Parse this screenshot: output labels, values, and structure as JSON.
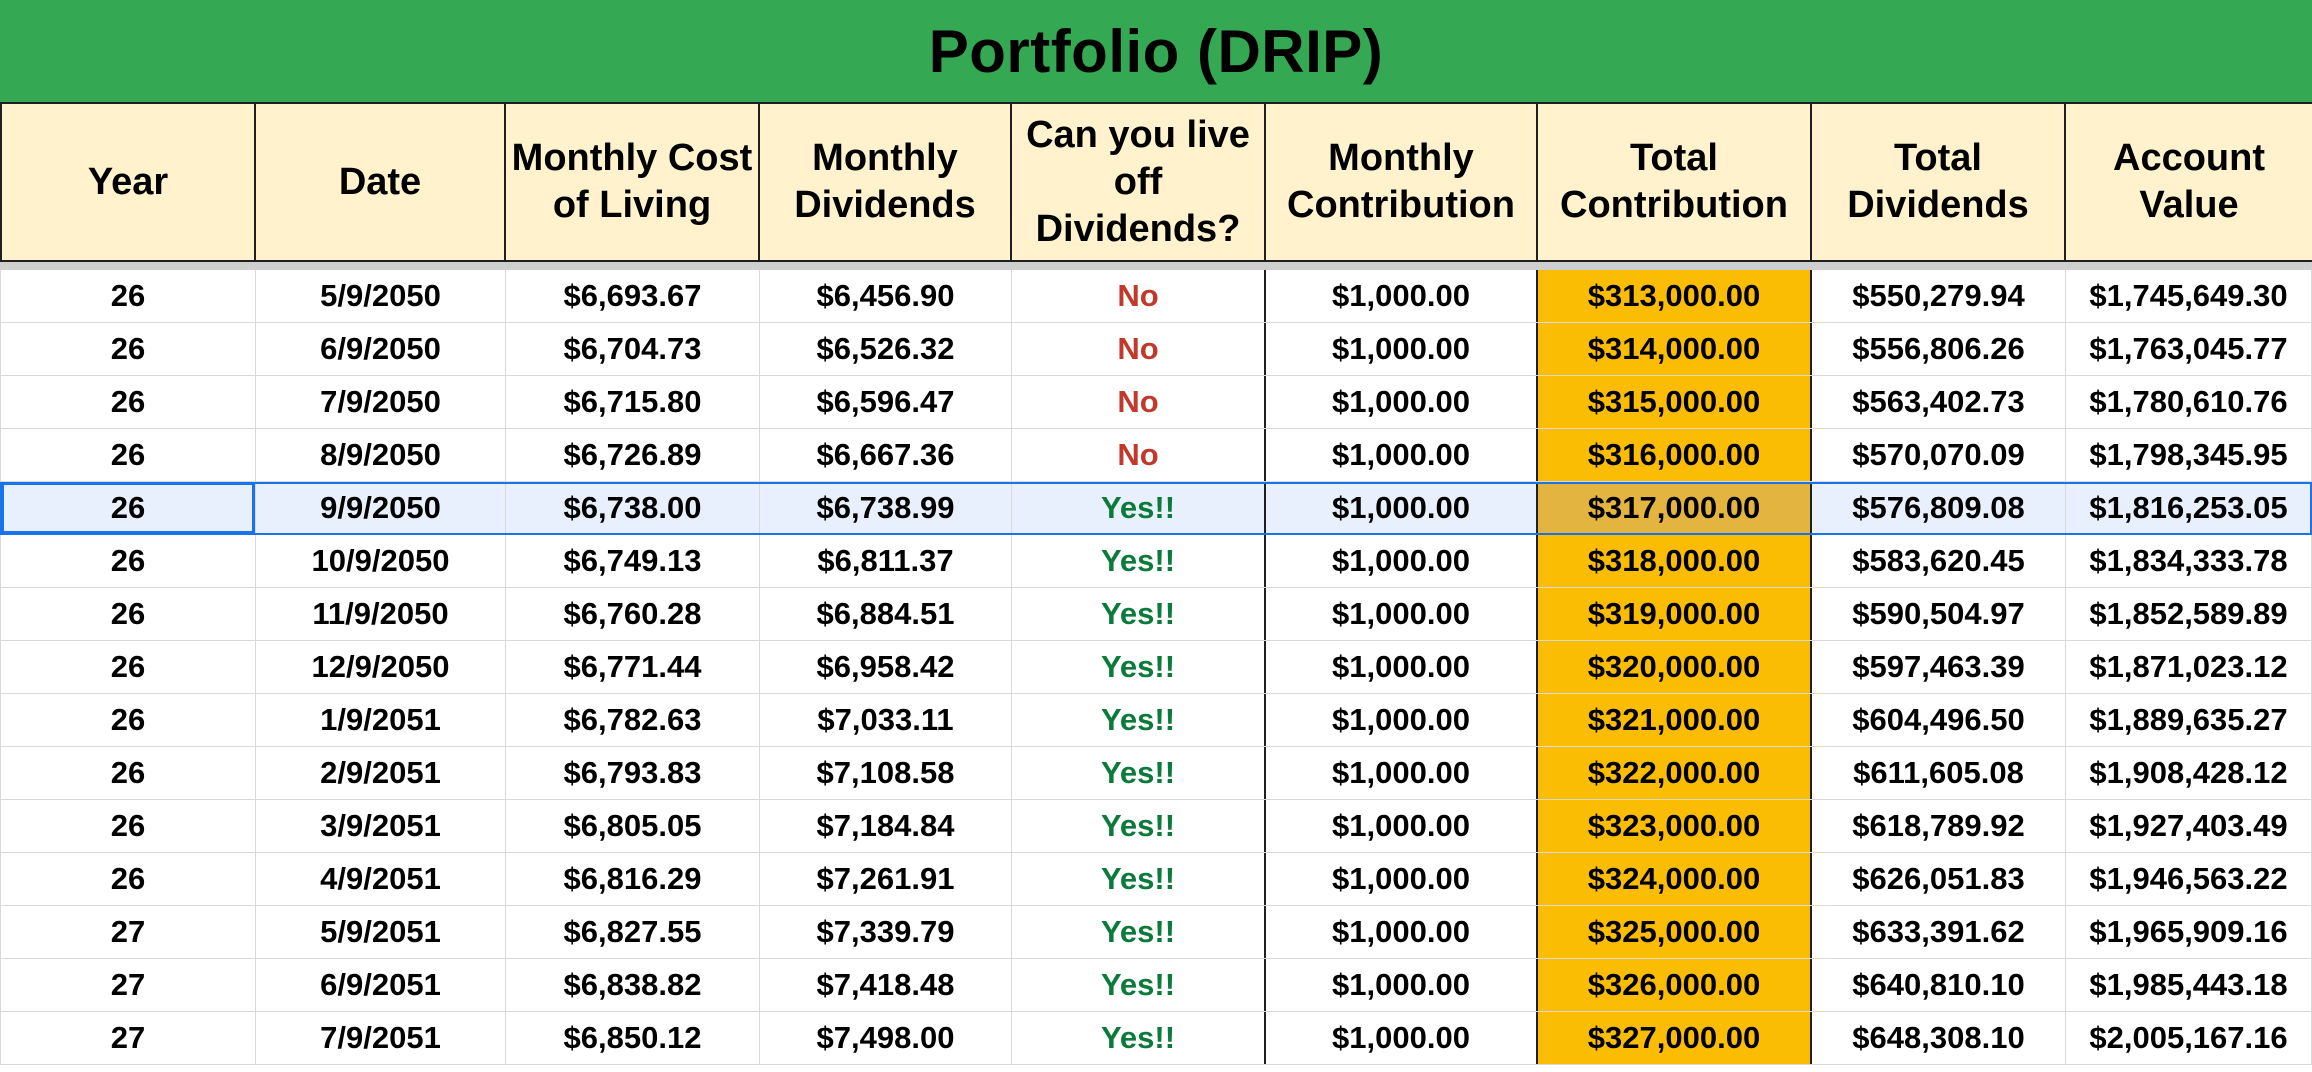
{
  "sheet": {
    "title": "Portfolio (DRIP)",
    "colors": {
      "title_bg": "#34a853",
      "header_bg": "#fff2cc",
      "total_contribution_bg": "#fbbc04",
      "no_text": "#c0392b",
      "yes_text": "#0b7a3a",
      "selection": "#1a73e8"
    },
    "headers": [
      "Year",
      "Date",
      "Monthly Cost of Living",
      "Monthly Dividends",
      "Can you live off Dividends?",
      "Monthly Contribution",
      "Total Contribution",
      "Total Dividends",
      "Account Value"
    ],
    "rows": [
      {
        "year": "26",
        "date": "5/9/2050",
        "cost": "$6,693.67",
        "dividends": "$6,456.90",
        "live": "No",
        "contribution": "$1,000.00",
        "total_contribution": "$313,000.00",
        "total_dividends": "$550,279.94",
        "account_value": "$1,745,649.30"
      },
      {
        "year": "26",
        "date": "6/9/2050",
        "cost": "$6,704.73",
        "dividends": "$6,526.32",
        "live": "No",
        "contribution": "$1,000.00",
        "total_contribution": "$314,000.00",
        "total_dividends": "$556,806.26",
        "account_value": "$1,763,045.77"
      },
      {
        "year": "26",
        "date": "7/9/2050",
        "cost": "$6,715.80",
        "dividends": "$6,596.47",
        "live": "No",
        "contribution": "$1,000.00",
        "total_contribution": "$315,000.00",
        "total_dividends": "$563,402.73",
        "account_value": "$1,780,610.76"
      },
      {
        "year": "26",
        "date": "8/9/2050",
        "cost": "$6,726.89",
        "dividends": "$6,667.36",
        "live": "No",
        "contribution": "$1,000.00",
        "total_contribution": "$316,000.00",
        "total_dividends": "$570,070.09",
        "account_value": "$1,798,345.95"
      },
      {
        "year": "26",
        "date": "9/9/2050",
        "cost": "$6,738.00",
        "dividends": "$6,738.99",
        "live": "Yes!!",
        "contribution": "$1,000.00",
        "total_contribution": "$317,000.00",
        "total_dividends": "$576,809.08",
        "account_value": "$1,816,253.05",
        "selected": true
      },
      {
        "year": "26",
        "date": "10/9/2050",
        "cost": "$6,749.13",
        "dividends": "$6,811.37",
        "live": "Yes!!",
        "contribution": "$1,000.00",
        "total_contribution": "$318,000.00",
        "total_dividends": "$583,620.45",
        "account_value": "$1,834,333.78"
      },
      {
        "year": "26",
        "date": "11/9/2050",
        "cost": "$6,760.28",
        "dividends": "$6,884.51",
        "live": "Yes!!",
        "contribution": "$1,000.00",
        "total_contribution": "$319,000.00",
        "total_dividends": "$590,504.97",
        "account_value": "$1,852,589.89"
      },
      {
        "year": "26",
        "date": "12/9/2050",
        "cost": "$6,771.44",
        "dividends": "$6,958.42",
        "live": "Yes!!",
        "contribution": "$1,000.00",
        "total_contribution": "$320,000.00",
        "total_dividends": "$597,463.39",
        "account_value": "$1,871,023.12"
      },
      {
        "year": "26",
        "date": "1/9/2051",
        "cost": "$6,782.63",
        "dividends": "$7,033.11",
        "live": "Yes!!",
        "contribution": "$1,000.00",
        "total_contribution": "$321,000.00",
        "total_dividends": "$604,496.50",
        "account_value": "$1,889,635.27"
      },
      {
        "year": "26",
        "date": "2/9/2051",
        "cost": "$6,793.83",
        "dividends": "$7,108.58",
        "live": "Yes!!",
        "contribution": "$1,000.00",
        "total_contribution": "$322,000.00",
        "total_dividends": "$611,605.08",
        "account_value": "$1,908,428.12"
      },
      {
        "year": "26",
        "date": "3/9/2051",
        "cost": "$6,805.05",
        "dividends": "$7,184.84",
        "live": "Yes!!",
        "contribution": "$1,000.00",
        "total_contribution": "$323,000.00",
        "total_dividends": "$618,789.92",
        "account_value": "$1,927,403.49"
      },
      {
        "year": "26",
        "date": "4/9/2051",
        "cost": "$6,816.29",
        "dividends": "$7,261.91",
        "live": "Yes!!",
        "contribution": "$1,000.00",
        "total_contribution": "$324,000.00",
        "total_dividends": "$626,051.83",
        "account_value": "$1,946,563.22"
      },
      {
        "year": "27",
        "date": "5/9/2051",
        "cost": "$6,827.55",
        "dividends": "$7,339.79",
        "live": "Yes!!",
        "contribution": "$1,000.00",
        "total_contribution": "$325,000.00",
        "total_dividends": "$633,391.62",
        "account_value": "$1,965,909.16"
      },
      {
        "year": "27",
        "date": "6/9/2051",
        "cost": "$6,838.82",
        "dividends": "$7,418.48",
        "live": "Yes!!",
        "contribution": "$1,000.00",
        "total_contribution": "$326,000.00",
        "total_dividends": "$640,810.10",
        "account_value": "$1,985,443.18"
      },
      {
        "year": "27",
        "date": "7/9/2051",
        "cost": "$6,850.12",
        "dividends": "$7,498.00",
        "live": "Yes!!",
        "contribution": "$1,000.00",
        "total_contribution": "$327,000.00",
        "total_dividends": "$648,308.10",
        "account_value": "$2,005,167.16"
      }
    ]
  }
}
